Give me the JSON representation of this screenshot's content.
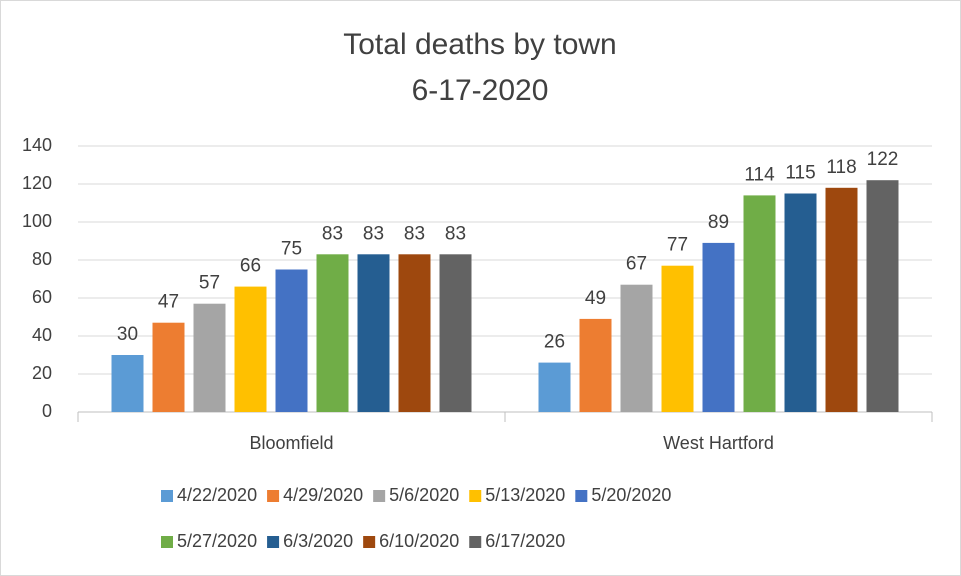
{
  "chart_data": {
    "type": "bar",
    "title": "Total deaths by town",
    "subtitle": "6-17-2020",
    "categories": [
      "Bloomfield",
      "West Hartford"
    ],
    "series": [
      {
        "name": "4/22/2020",
        "color": "#5b9bd5",
        "values": [
          30,
          26
        ]
      },
      {
        "name": "4/29/2020",
        "color": "#ed7d31",
        "values": [
          47,
          49
        ]
      },
      {
        "name": "5/6/2020",
        "color": "#a5a5a5",
        "values": [
          57,
          67
        ]
      },
      {
        "name": "5/13/2020",
        "color": "#ffc000",
        "values": [
          66,
          77
        ]
      },
      {
        "name": "5/20/2020",
        "color": "#4472c4",
        "values": [
          75,
          89
        ]
      },
      {
        "name": "5/27/2020",
        "color": "#70ad47",
        "values": [
          83,
          114
        ]
      },
      {
        "name": "6/3/2020",
        "color": "#255e91",
        "values": [
          83,
          115
        ]
      },
      {
        "name": "6/10/2020",
        "color": "#9e480e",
        "values": [
          83,
          118
        ]
      },
      {
        "name": "6/17/2020",
        "color": "#636363",
        "values": [
          83,
          122
        ]
      }
    ],
    "ylim": [
      0,
      140
    ],
    "yticks": [
      0,
      20,
      40,
      60,
      80,
      100,
      120,
      140
    ],
    "grid": true,
    "legend": "bottom"
  }
}
